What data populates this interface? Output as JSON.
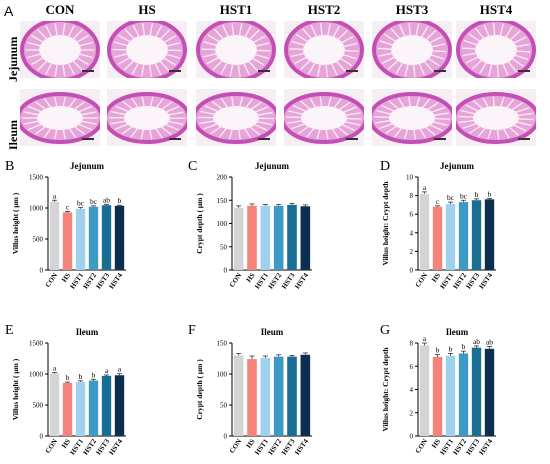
{
  "panel_a": {
    "letter": "A",
    "columns": [
      "CON",
      "HS",
      "HST1",
      "HST2",
      "HST3",
      "HST4"
    ],
    "rows": [
      "Jejunum",
      "Ileum"
    ]
  },
  "colors": {
    "CON": "#d4d4d6",
    "HS": "#f4837b",
    "HST1": "#9fd1ef",
    "HST2": "#3d9ac4",
    "HST3": "#1a6e93",
    "HST4": "#0c2f4f",
    "tissue_border": "#c44fb4",
    "tissue_fill": "#e6a4d9",
    "lumen": "#fbf4f8",
    "villi": "#f7e9f3"
  },
  "chart_data": [
    {
      "letter": "B",
      "type": "bar",
      "title": "Jejunum",
      "ylabel": "Villus height ( μm )",
      "ylim": [
        0,
        1500
      ],
      "yticks": [
        0,
        500,
        1000,
        1500
      ],
      "categories": [
        "CON",
        "HS",
        "HST1",
        "HST2",
        "HST3",
        "HST4"
      ],
      "values": [
        1100,
        930,
        985,
        1020,
        1045,
        1035
      ],
      "errors": [
        25,
        15,
        25,
        15,
        15,
        10
      ],
      "labels": [
        "a",
        "c",
        "bc",
        "bc",
        "ab",
        "b"
      ]
    },
    {
      "letter": "C",
      "type": "bar",
      "title": "Jejunum",
      "ylabel": "Crypt depth ( μm )",
      "ylim": [
        0,
        200
      ],
      "yticks": [
        0,
        50,
        100,
        150,
        200
      ],
      "categories": [
        "CON",
        "HS",
        "HST1",
        "HST2",
        "HST3",
        "HST4"
      ],
      "values": [
        134,
        138,
        138,
        138,
        140,
        137
      ],
      "errors": [
        4,
        4,
        3,
        3,
        3,
        3
      ],
      "labels": [
        "",
        "",
        "",
        "",
        "",
        ""
      ]
    },
    {
      "letter": "D",
      "type": "bar",
      "title": "Jejunum",
      "ylabel": "Villus height: Crypt depth",
      "ylim": [
        0,
        10
      ],
      "yticks": [
        0,
        2,
        4,
        6,
        8,
        10
      ],
      "categories": [
        "CON",
        "HS",
        "HST1",
        "HST2",
        "HST3",
        "HST4"
      ],
      "values": [
        8.2,
        6.8,
        7.1,
        7.3,
        7.5,
        7.6
      ],
      "errors": [
        0.2,
        0.1,
        0.2,
        0.2,
        0.15,
        0.1
      ],
      "labels": [
        "a",
        "c",
        "bc",
        "bc",
        "b",
        "b"
      ]
    },
    {
      "letter": "E",
      "type": "bar",
      "title": "Ileum",
      "ylabel": "Villus height ( μm )",
      "ylim": [
        0,
        1500
      ],
      "yticks": [
        0,
        500,
        1000,
        1500
      ],
      "categories": [
        "CON",
        "HS",
        "HST1",
        "HST2",
        "HST3",
        "HST4"
      ],
      "values": [
        1010,
        855,
        870,
        895,
        970,
        980
      ],
      "errors": [
        15,
        15,
        20,
        20,
        15,
        25
      ],
      "labels": [
        "a",
        "b",
        "b",
        "b",
        "a",
        "a"
      ]
    },
    {
      "letter": "F",
      "type": "bar",
      "title": "Ileum",
      "ylabel": "Crypt depth ( μm )",
      "ylim": [
        0,
        150
      ],
      "yticks": [
        0,
        50,
        100,
        150
      ],
      "categories": [
        "CON",
        "HS",
        "HST1",
        "HST2",
        "HST3",
        "HST4"
      ],
      "values": [
        130,
        124,
        126,
        128,
        128,
        131
      ],
      "errors": [
        3,
        5,
        3,
        3,
        2,
        3
      ],
      "labels": [
        "",
        "",
        "",
        "",
        "",
        ""
      ]
    },
    {
      "letter": "G",
      "type": "bar",
      "title": "Ileum",
      "ylabel": "Villus height: Crypt depth",
      "ylim": [
        0,
        8
      ],
      "yticks": [
        0,
        2,
        4,
        6,
        8
      ],
      "categories": [
        "CON",
        "HS",
        "HST1",
        "HST2",
        "HST3",
        "HST4"
      ],
      "values": [
        7.8,
        6.8,
        6.9,
        7.1,
        7.6,
        7.5
      ],
      "errors": [
        0.2,
        0.2,
        0.2,
        0.2,
        0.15,
        0.2
      ],
      "labels": [
        "a",
        "b",
        "b",
        "b",
        "ab",
        "ab"
      ]
    }
  ]
}
